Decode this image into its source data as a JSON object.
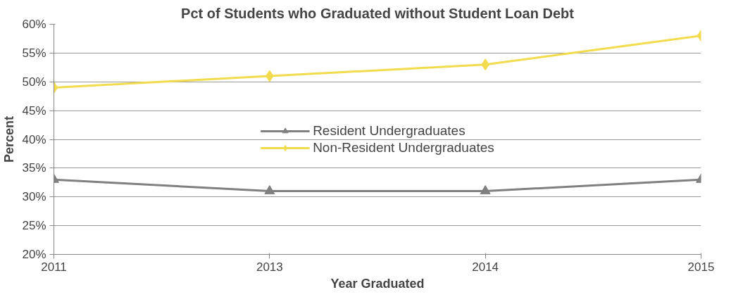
{
  "chart_data": {
    "type": "line",
    "title": "Pct of Students who Graduated without Student Loan Debt",
    "xlabel": "Year Graduated",
    "ylabel": "Percent",
    "categories": [
      "2011",
      "2013",
      "2014",
      "2015"
    ],
    "series": [
      {
        "name": "Resident Undergraduates",
        "color": "#808080",
        "marker": "triangle",
        "values": [
          33,
          31,
          31,
          33
        ]
      },
      {
        "name": "Non-Resident Undergraduates",
        "color": "#f2dc4e",
        "marker": "diamond",
        "values": [
          49,
          51,
          53,
          58
        ]
      }
    ],
    "ylim": [
      20,
      60
    ],
    "yticks": [
      {
        "value": 20,
        "label": "20%"
      },
      {
        "value": 25,
        "label": "25%"
      },
      {
        "value": 30,
        "label": "30%"
      },
      {
        "value": 35,
        "label": "35%"
      },
      {
        "value": 40,
        "label": "40%"
      },
      {
        "value": 45,
        "label": "45%"
      },
      {
        "value": 50,
        "label": "50%"
      },
      {
        "value": 55,
        "label": "55%"
      },
      {
        "value": 60,
        "label": "60%"
      }
    ],
    "grid": "y",
    "legend": "center",
    "line_style": "solid"
  }
}
